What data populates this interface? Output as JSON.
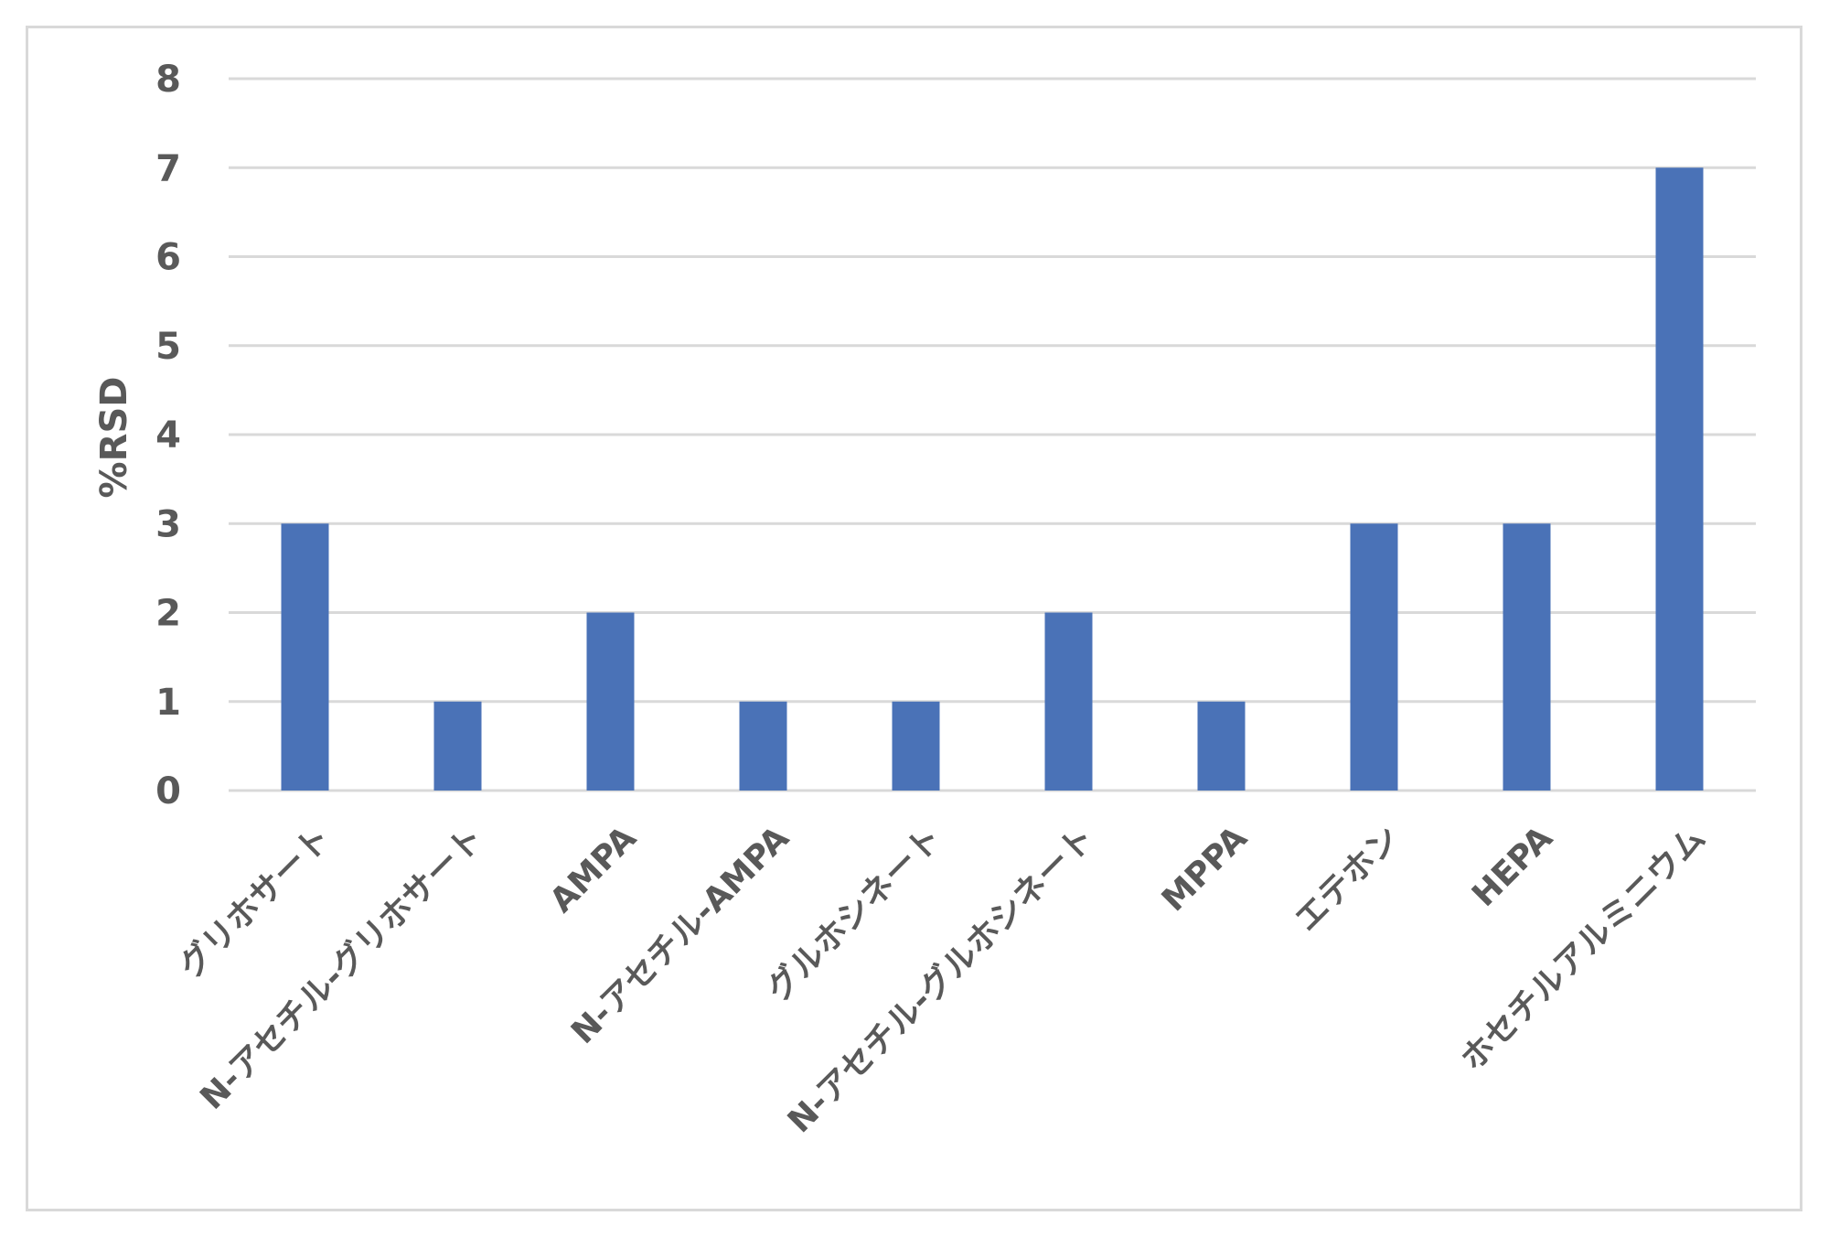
{
  "chart_data": {
    "type": "bar",
    "title": "",
    "xlabel": "",
    "ylabel": "%RSD",
    "ylim": [
      0,
      8
    ],
    "yticks": [
      0,
      1,
      2,
      3,
      4,
      5,
      6,
      7,
      8
    ],
    "grid": true,
    "legend": "none",
    "bar_color": "#4a72b7",
    "categories": [
      "グリホサート",
      "N-アセチル-グリホサート",
      "AMPA",
      "N-アセチル-AMPA",
      "グルホシネート",
      "N-アセチル-グルホシネート",
      "MPPA",
      "エテホン",
      "HEPA",
      "ホセチルアルミニウム"
    ],
    "values": [
      3,
      1,
      2,
      1,
      1,
      2,
      1,
      3,
      3,
      7
    ]
  }
}
